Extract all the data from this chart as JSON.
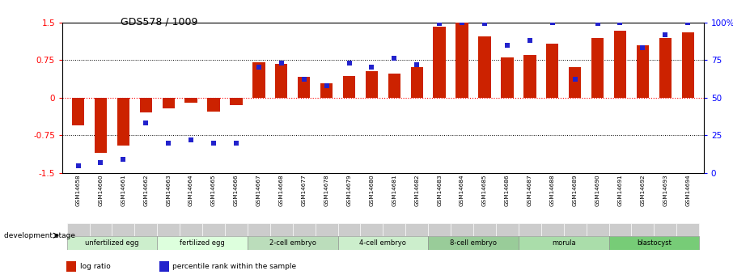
{
  "title": "GDS578 / 1009",
  "samples": [
    "GSM14658",
    "GSM14660",
    "GSM14661",
    "GSM14662",
    "GSM14663",
    "GSM14664",
    "GSM14665",
    "GSM14666",
    "GSM14667",
    "GSM14668",
    "GSM14677",
    "GSM14678",
    "GSM14679",
    "GSM14680",
    "GSM14681",
    "GSM14682",
    "GSM14683",
    "GSM14684",
    "GSM14685",
    "GSM14686",
    "GSM14687",
    "GSM14688",
    "GSM14689",
    "GSM14690",
    "GSM14691",
    "GSM14692",
    "GSM14693",
    "GSM14694"
  ],
  "log_ratio": [
    -0.55,
    -1.1,
    -0.95,
    -0.3,
    -0.22,
    -0.1,
    -0.28,
    -0.15,
    0.7,
    0.67,
    0.42,
    0.28,
    0.43,
    0.52,
    0.48,
    0.6,
    1.42,
    1.5,
    1.22,
    0.8,
    0.85,
    1.08,
    0.6,
    1.18,
    1.33,
    1.05,
    1.18,
    1.3
  ],
  "percentile_rank": [
    5,
    7,
    9,
    33,
    20,
    22,
    20,
    20,
    70,
    73,
    62,
    58,
    73,
    70,
    76,
    72,
    99,
    100,
    99,
    85,
    88,
    100,
    62,
    99,
    100,
    83,
    92,
    100
  ],
  "stages": [
    {
      "label": "unfertilized egg",
      "start": 0,
      "end": 3,
      "color": "#cceecc"
    },
    {
      "label": "fertilized egg",
      "start": 4,
      "end": 7,
      "color": "#ddffdd"
    },
    {
      "label": "2-cell embryo",
      "start": 8,
      "end": 11,
      "color": "#bbddbb"
    },
    {
      "label": "4-cell embryo",
      "start": 12,
      "end": 15,
      "color": "#cceecc"
    },
    {
      "label": "8-cell embryo",
      "start": 16,
      "end": 19,
      "color": "#99cc99"
    },
    {
      "label": "morula",
      "start": 20,
      "end": 23,
      "color": "#aaddaa"
    },
    {
      "label": "blastocyst",
      "start": 24,
      "end": 27,
      "color": "#77cc77"
    }
  ],
  "bar_color": "#cc2200",
  "dot_color": "#2222cc",
  "ylim_left": [
    -1.5,
    1.5
  ],
  "ylim_right": [
    0,
    100
  ],
  "yticks_left": [
    -1.5,
    -0.75,
    0,
    0.75,
    1.5
  ],
  "ytick_labels_left": [
    "-1.5",
    "-0.75",
    "0",
    "0.75",
    "1.5"
  ],
  "yticks_right": [
    0,
    25,
    50,
    75,
    100
  ],
  "ytick_labels_right": [
    "0",
    "25",
    "50",
    "75",
    "100%"
  ],
  "dev_stage_label": "development stage",
  "legend_items": [
    {
      "color": "#cc2200",
      "label": "log ratio"
    },
    {
      "color": "#2222cc",
      "label": "percentile rank within the sample"
    }
  ],
  "background_color": "#ffffff"
}
